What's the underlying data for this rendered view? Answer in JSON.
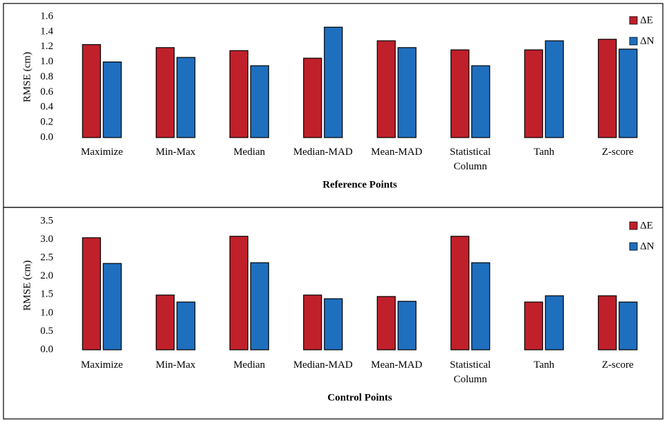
{
  "chart_data": [
    {
      "type": "bar",
      "x_label": "Reference Points",
      "y_label": "RMSE (cm)",
      "categories": [
        "Maximize",
        "Min-Max",
        "Median",
        "Median-MAD",
        "Mean-MAD",
        "Statistical Column",
        "Tanh",
        "Z-score"
      ],
      "series": [
        {
          "name": "ΔE",
          "color": "#c0202a",
          "values": [
            1.23,
            1.19,
            1.15,
            1.05,
            1.28,
            1.16,
            1.16,
            1.3
          ]
        },
        {
          "name": "ΔN",
          "color": "#1f6fbf",
          "values": [
            1.0,
            1.06,
            0.95,
            1.46,
            1.19,
            0.95,
            1.28,
            1.17
          ]
        }
      ],
      "ylim": [
        0,
        1.6
      ],
      "yticks": [
        {
          "value": 0,
          "label": "0.0"
        },
        0.2,
        0.4,
        0.6,
        0.8,
        {
          "value": 1,
          "label": "1.0"
        },
        1.2,
        1.4,
        1.6
      ],
      "legend": "top-right"
    },
    {
      "type": "bar",
      "x_label": "Control Points",
      "y_label": "RMSE (cm)",
      "categories": [
        "Maximize",
        "Min-Max",
        "Median",
        "Median-MAD",
        "Mean-MAD",
        "Statistical Column",
        "Tanh",
        "Z-score"
      ],
      "series": [
        {
          "name": "ΔE",
          "color": "#c0202a",
          "values": [
            3.05,
            1.49,
            3.09,
            1.49,
            1.45,
            3.09,
            1.3,
            1.47
          ]
        },
        {
          "name": "ΔN",
          "color": "#1f6fbf",
          "values": [
            2.35,
            1.3,
            2.37,
            1.39,
            1.32,
            2.37,
            1.47,
            1.3
          ]
        }
      ],
      "ylim": [
        0,
        3.5
      ],
      "yticks": [
        {
          "value": 0,
          "label": "0.0"
        },
        0.5,
        {
          "value": 1,
          "label": "1.0"
        },
        1.5,
        {
          "value": 2,
          "label": "2.0"
        },
        2.5,
        {
          "value": 3,
          "label": "3.0"
        },
        3.5
      ],
      "legend": "top-right"
    }
  ]
}
